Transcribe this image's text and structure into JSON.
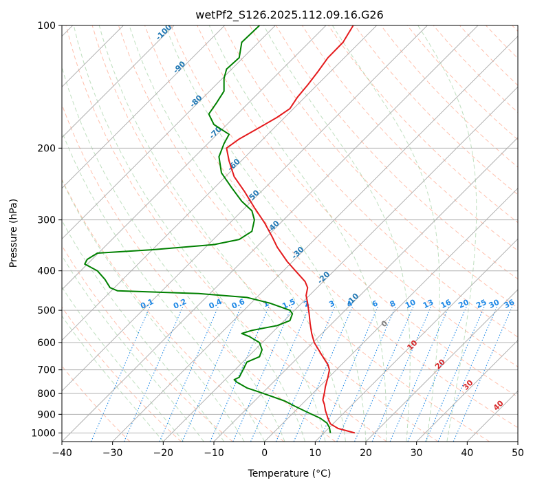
{
  "chart_data": {
    "type": "line",
    "title": "wetPf2_S126.2025.112.09.16.G26",
    "xlabel": "Temperature (°C)",
    "ylabel": "Pressure (hPa)",
    "xlim": [
      -40,
      50
    ],
    "ylim": [
      1050,
      100
    ],
    "y_scale": "log",
    "x_ticks": [
      -40,
      -30,
      -20,
      -10,
      0,
      10,
      20,
      30,
      40,
      50
    ],
    "y_ticks": [
      1000,
      900,
      800,
      700,
      600,
      500,
      400,
      300,
      200,
      100
    ],
    "grid": "horizontal at pressure ticks",
    "colors": {
      "temperature": "#e41a1c",
      "dewpoint": "#008000",
      "isotherm": "#b0b0b0",
      "dry_adiabat": "#ff8c69",
      "moist_adiabat": "#7fbf7f",
      "mixing_ratio": "#1e88e5",
      "isotherm_label": "#1f77b4",
      "adiabat_label": "#d62728"
    },
    "isotherm_labels": [
      {
        "text": "-100",
        "x": -100,
        "p": 105
      },
      {
        "text": "-90",
        "x": -90,
        "p": 128
      },
      {
        "text": "-80",
        "x": -80,
        "p": 155
      },
      {
        "text": "-70",
        "x": -70,
        "p": 185
      },
      {
        "text": "-60",
        "x": -60,
        "p": 222
      },
      {
        "text": "-50",
        "x": -50,
        "p": 265
      },
      {
        "text": "-40",
        "x": -40,
        "p": 315
      },
      {
        "text": "-30",
        "x": -30,
        "p": 365
      },
      {
        "text": "-20",
        "x": -20,
        "p": 420
      },
      {
        "text": "-10",
        "x": -10,
        "p": 475
      }
    ],
    "mixing_ratio_labels": [
      {
        "text": "0.1",
        "x": -23
      },
      {
        "text": "0.2",
        "x": -16.5
      },
      {
        "text": "0.4",
        "x": -9.5
      },
      {
        "text": "0.6",
        "x": -5
      },
      {
        "text": "1",
        "x": 0.5
      },
      {
        "text": "1.5",
        "x": 5
      },
      {
        "text": "2",
        "x": 8.5
      },
      {
        "text": "3",
        "x": 13.5
      },
      {
        "text": "4",
        "x": 17
      },
      {
        "text": "6",
        "x": 22
      },
      {
        "text": "8",
        "x": 25.5
      },
      {
        "text": "10",
        "x": 29
      },
      {
        "text": "13",
        "x": 32.5
      },
      {
        "text": "16",
        "x": 36
      },
      {
        "text": "20",
        "x": 39.5
      },
      {
        "text": "25",
        "x": 43
      },
      {
        "text": "30",
        "x": 45.5
      },
      {
        "text": "36",
        "x": 48.5
      }
    ],
    "adiabat_labels": [
      {
        "text": "0",
        "x": 24,
        "p": 545,
        "color": "#808080"
      },
      {
        "text": "10",
        "x": 29.5,
        "p": 615
      },
      {
        "text": "20",
        "x": 35,
        "p": 685
      },
      {
        "text": "30",
        "x": 40.5,
        "p": 770
      },
      {
        "text": "40",
        "x": 46.5,
        "p": 865
      }
    ],
    "series": [
      {
        "points": [
          [
            17.8,
            1000
          ],
          [
            14.5,
            975
          ],
          [
            13.0,
            950
          ],
          [
            12.5,
            920
          ],
          [
            12.0,
            880
          ],
          [
            11.8,
            850
          ],
          [
            11.5,
            830
          ],
          [
            11.8,
            800
          ],
          [
            12.0,
            770
          ],
          [
            12.5,
            730
          ],
          [
            12.8,
            700
          ],
          [
            12.5,
            680
          ],
          [
            11.5,
            650
          ],
          [
            10.5,
            620
          ],
          [
            9.8,
            600
          ],
          [
            9.3,
            570
          ],
          [
            9.0,
            540
          ],
          [
            8.8,
            510
          ],
          [
            8.5,
            480
          ],
          [
            8.2,
            460
          ],
          [
            8.5,
            440
          ],
          [
            8.0,
            425
          ],
          [
            6.5,
            405
          ],
          [
            4.5,
            380
          ],
          [
            2.5,
            350
          ],
          [
            1.5,
            330
          ],
          [
            0.0,
            305
          ],
          [
            -2.0,
            280
          ],
          [
            -4.0,
            255
          ],
          [
            -6.0,
            235
          ],
          [
            -7.0,
            215
          ],
          [
            -7.5,
            200
          ],
          [
            -5.0,
            190
          ],
          [
            -1.0,
            178
          ],
          [
            2.5,
            168
          ],
          [
            5.0,
            160
          ],
          [
            6.5,
            150
          ],
          [
            8.5,
            140
          ],
          [
            10.5,
            130
          ],
          [
            12.5,
            120
          ],
          [
            15.5,
            110
          ],
          [
            17.5,
            100
          ]
        ]
      },
      {
        "points": [
          [
            13.0,
            1000
          ],
          [
            12.8,
            970
          ],
          [
            12.3,
            945
          ],
          [
            11.0,
            920
          ],
          [
            8.5,
            890
          ],
          [
            6.0,
            860
          ],
          [
            4.0,
            835
          ],
          [
            1.0,
            810
          ],
          [
            -1.5,
            790
          ],
          [
            -3.5,
            775
          ],
          [
            -5.5,
            750
          ],
          [
            -6.0,
            740
          ],
          [
            -5.0,
            730
          ],
          [
            -4.5,
            710
          ],
          [
            -4.0,
            690
          ],
          [
            -3.5,
            670
          ],
          [
            -1.0,
            650
          ],
          [
            -0.5,
            625
          ],
          [
            -1.0,
            600
          ],
          [
            -3.0,
            580
          ],
          [
            -4.5,
            570
          ],
          [
            -2.5,
            560
          ],
          [
            2.5,
            545
          ],
          [
            5.0,
            530
          ],
          [
            5.5,
            510
          ],
          [
            5.0,
            500
          ],
          [
            1.0,
            480
          ],
          [
            -3.5,
            465
          ],
          [
            -13.0,
            455
          ],
          [
            -29.0,
            448
          ],
          [
            -30.5,
            440
          ],
          [
            -31.5,
            420
          ],
          [
            -33.0,
            400
          ],
          [
            -35.5,
            385
          ],
          [
            -35.0,
            375
          ],
          [
            -33.0,
            362
          ],
          [
            -22.0,
            355
          ],
          [
            -10.0,
            345
          ],
          [
            -5.0,
            335
          ],
          [
            -2.5,
            320
          ],
          [
            -2.0,
            300
          ],
          [
            -2.5,
            285
          ],
          [
            -4.5,
            270
          ],
          [
            -6.5,
            250
          ],
          [
            -8.5,
            230
          ],
          [
            -9.0,
            210
          ],
          [
            -8.0,
            195
          ],
          [
            -7.0,
            185
          ],
          [
            -10.0,
            175
          ],
          [
            -11.0,
            165
          ],
          [
            -9.5,
            155
          ],
          [
            -8.0,
            145
          ],
          [
            -8.0,
            135
          ],
          [
            -7.5,
            128
          ],
          [
            -5.0,
            120
          ],
          [
            -4.5,
            110
          ],
          [
            -1.0,
            100
          ]
        ]
      }
    ]
  }
}
